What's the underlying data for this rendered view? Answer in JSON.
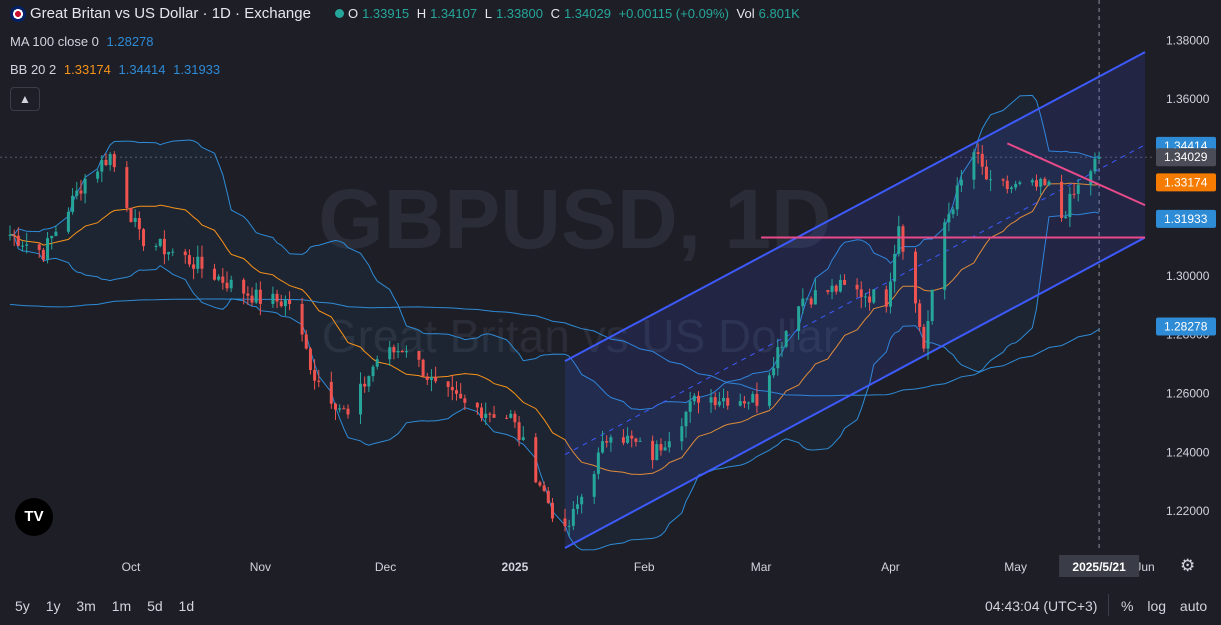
{
  "header": {
    "symbol_title": "Great Britan vs US Dollar · 1D · Exchange",
    "open_label": "O",
    "open": "1.33915",
    "high_label": "H",
    "high": "1.34107",
    "low_label": "L",
    "low": "1.33800",
    "close_label": "C",
    "close": "1.34029",
    "change": "+0.00115 (+0.09%)",
    "vol_label": "Vol",
    "vol": "6.801K",
    "ma_label": "MA 100 close 0",
    "ma_value": "1.28278",
    "bb_label": "BB 20 2",
    "bb_basis": "1.33174",
    "bb_upper": "1.34414",
    "bb_lower": "1.31933"
  },
  "watermark": {
    "main": "GBPUSD, 1D",
    "sub": "Great Britan vs US Dollar"
  },
  "colors": {
    "background": "#1e1e26",
    "up": "#26a69a",
    "down": "#ef5350",
    "bb_band": "#2e8bd6",
    "bb_basis": "#f7931a",
    "ma": "#2e8bd6",
    "channel": "#3d5afe",
    "pink_line": "#e84a8a"
  },
  "chart_data": {
    "type": "candlestick",
    "y_axis": {
      "ylim": [
        1.2075,
        1.3825
      ],
      "ticks": [
        "1.22000",
        "1.24000",
        "1.26000",
        "1.28000",
        "1.30000",
        "1.32000",
        "1.34000",
        "1.36000",
        "1.38000"
      ]
    },
    "x_axis": {
      "ticks": [
        "Oct",
        "Nov",
        "Dec",
        "2025",
        "Feb",
        "Mar",
        "Apr",
        "May",
        "Jun"
      ],
      "crosshair_label": "2025/5/21"
    },
    "price_tags": [
      {
        "value": "1.34414",
        "series": "bb_upper"
      },
      {
        "value": "1.34029",
        "series": "last"
      },
      {
        "value": "1.33174",
        "series": "bb_basis"
      },
      {
        "value": "1.31933",
        "series": "bb_lower"
      },
      {
        "value": "1.28278",
        "series": "ma100"
      }
    ],
    "candle_anchors": [
      [
        "2024-09-02",
        1.314
      ],
      [
        "2024-09-10",
        1.308
      ],
      [
        "2024-09-20",
        1.333
      ],
      [
        "2024-09-26",
        1.341
      ],
      [
        "2024-10-03",
        1.313
      ],
      [
        "2024-10-14",
        1.306
      ],
      [
        "2024-10-25",
        1.297
      ],
      [
        "2024-11-01",
        1.292
      ],
      [
        "2024-11-08",
        1.291
      ],
      [
        "2024-11-14",
        1.266
      ],
      [
        "2024-11-22",
        1.252
      ],
      [
        "2024-11-29",
        1.272
      ],
      [
        "2024-12-06",
        1.276
      ],
      [
        "2024-12-13",
        1.262
      ],
      [
        "2024-12-20",
        1.256
      ],
      [
        "2024-12-31",
        1.252
      ],
      [
        "2025-01-10",
        1.22
      ],
      [
        "2025-01-13",
        1.212
      ],
      [
        "2025-01-24",
        1.248
      ],
      [
        "2025-02-03",
        1.239
      ],
      [
        "2025-02-14",
        1.259
      ],
      [
        "2025-02-28",
        1.258
      ],
      [
        "2025-03-10",
        1.292
      ],
      [
        "2025-03-20",
        1.296
      ],
      [
        "2025-03-31",
        1.292
      ],
      [
        "2025-04-03",
        1.318
      ],
      [
        "2025-04-09",
        1.276
      ],
      [
        "2025-04-14",
        1.318
      ],
      [
        "2025-04-21",
        1.342
      ],
      [
        "2025-04-25",
        1.33
      ],
      [
        "2025-05-02",
        1.33
      ],
      [
        "2025-05-09",
        1.33
      ],
      [
        "2025-05-12",
        1.32
      ],
      [
        "2025-05-16",
        1.33
      ],
      [
        "2025-05-21",
        1.3403
      ]
    ],
    "channel": {
      "upper": [
        [
          "2025-01-13",
          1.271
        ],
        [
          "2025-06-01",
          1.376
        ]
      ],
      "lower": [
        [
          "2025-01-13",
          1.2075
        ],
        [
          "2025-06-01",
          1.313
        ]
      ]
    },
    "pink_lines": [
      [
        [
          "2025-03-01",
          1.313
        ],
        [
          "2025-06-01",
          1.313
        ]
      ],
      [
        [
          "2025-04-29",
          1.345
        ],
        [
          "2025-06-01",
          1.324
        ]
      ]
    ]
  },
  "bottom": {
    "ranges": [
      "5y",
      "1y",
      "3m",
      "1m",
      "5d",
      "1d"
    ],
    "clock": "04:43:04 (UTC+3)",
    "percent": "%",
    "log": "log",
    "auto": "auto",
    "logo": "TV"
  }
}
